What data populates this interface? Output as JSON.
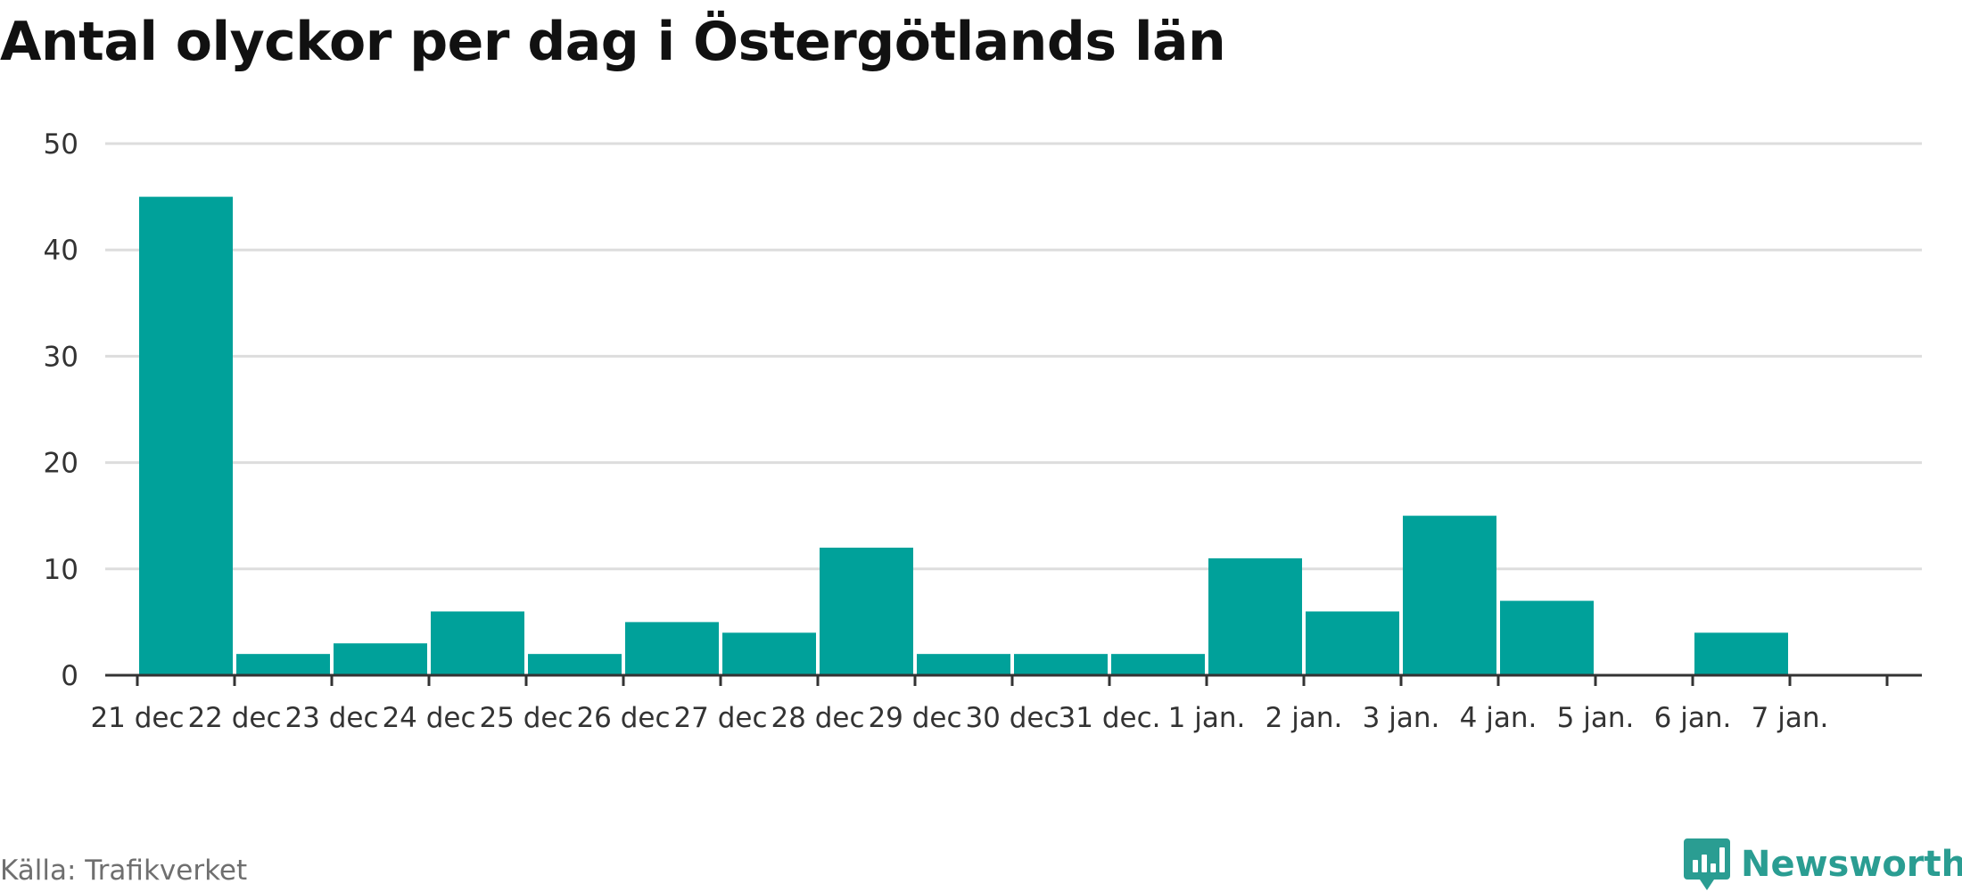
{
  "title": "Antal olyckor per dag i Östergötlands län",
  "source": "Källa: Trafikverket",
  "brand": {
    "name": "Newsworthy",
    "icon": "newsworthy-logo-icon",
    "color": "#2a9d92"
  },
  "chart_data": {
    "type": "bar",
    "bar_color": "#00a19a",
    "ylim": [
      0,
      50
    ],
    "yticks": [
      0,
      10,
      20,
      30,
      40,
      50
    ],
    "grid": true,
    "x_tick_labels": [
      "21 dec",
      "22 dec",
      "23 dec",
      "24 dec",
      "25 dec",
      "26 dec",
      "27 dec",
      "28 dec",
      "29 dec",
      "30 dec",
      "31 dec.",
      "1 jan.",
      "2 jan.",
      "3 jan.",
      "4 jan.",
      "5 jan.",
      "6 jan.",
      "7 jan."
    ],
    "categories": [
      "21 dec",
      "22 dec",
      "23 dec",
      "24 dec",
      "25 dec",
      "26 dec",
      "27 dec",
      "28 dec",
      "29 dec",
      "30 dec",
      "31 dec.",
      "1 jan.",
      "2 jan.",
      "3 jan.",
      "4 jan.",
      "5 jan.",
      "6 jan."
    ],
    "values": [
      45,
      2,
      3,
      6,
      2,
      5,
      4,
      12,
      2,
      2,
      2,
      11,
      6,
      15,
      7,
      0,
      4
    ]
  }
}
